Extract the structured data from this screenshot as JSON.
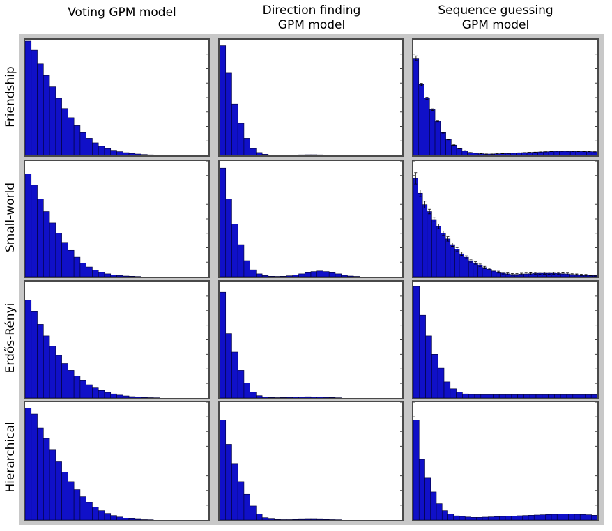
{
  "columns": [
    {
      "title": "Voting GPM model"
    },
    {
      "title": "Direction finding\nGPM model"
    },
    {
      "title": "Sequence guessing\nGPM model"
    }
  ],
  "rows": [
    {
      "label": "Friendship"
    },
    {
      "label": "Small-world"
    },
    {
      "label": "Erdős-Rényi"
    },
    {
      "label": "Hierarchical"
    }
  ],
  "colors": {
    "bar_fill": "#1010c8",
    "bar_stroke": "#000033",
    "panel_border": "#4a4a4a",
    "grid_bg": "#c8c8c8"
  },
  "chart_data": [
    {
      "type": "bar",
      "row": "Friendship",
      "column": "Voting GPM model",
      "ylim": [
        0,
        1
      ],
      "values": [
        1.0,
        0.92,
        0.8,
        0.7,
        0.6,
        0.5,
        0.41,
        0.33,
        0.26,
        0.2,
        0.15,
        0.11,
        0.08,
        0.06,
        0.045,
        0.033,
        0.024,
        0.017,
        0.012,
        0.008,
        0.005,
        0.003,
        0.002,
        0.001,
        0.001,
        0.0,
        0.0,
        0.0,
        0.0,
        0.0
      ]
    },
    {
      "type": "bar",
      "row": "Friendship",
      "column": "Direction finding GPM model",
      "ylim": [
        0,
        1
      ],
      "values": [
        0.96,
        0.72,
        0.45,
        0.28,
        0.15,
        0.06,
        0.025,
        0.01,
        0.004,
        0.002,
        0.001,
        0.001,
        0.003,
        0.005,
        0.006,
        0.006,
        0.005,
        0.003,
        0.002,
        0.001,
        0.0,
        0.0,
        0.0,
        0.0,
        0.0,
        0.0,
        0.0,
        0.0,
        0.0,
        0.0
      ]
    },
    {
      "type": "bar",
      "row": "Friendship",
      "column": "Sequence guessing GPM model",
      "ylim": [
        0,
        1
      ],
      "error_bars": true,
      "values": [
        0.85,
        0.62,
        0.5,
        0.4,
        0.3,
        0.2,
        0.14,
        0.09,
        0.06,
        0.04,
        0.025,
        0.02,
        0.015,
        0.012,
        0.012,
        0.014,
        0.016,
        0.018,
        0.02,
        0.022,
        0.024,
        0.026,
        0.028,
        0.03,
        0.032,
        0.034,
        0.036,
        0.036,
        0.036,
        0.035,
        0.034,
        0.034,
        0.033,
        0.032
      ],
      "errors": [
        0.02,
        0.01,
        0.01,
        0.008,
        0.006,
        0.005,
        0.004,
        0.003,
        0.002,
        0.002,
        0.001,
        0.001,
        0.001,
        0.001,
        0.001,
        0.001,
        0.001,
        0.001,
        0.001,
        0.001,
        0.001,
        0.001,
        0.001,
        0.001,
        0.001,
        0.001,
        0.001,
        0.001,
        0.001,
        0.001,
        0.001,
        0.001,
        0.001,
        0.001
      ]
    },
    {
      "type": "bar",
      "row": "Small-world",
      "column": "Voting GPM model",
      "ylim": [
        0,
        1
      ],
      "values": [
        0.9,
        0.8,
        0.68,
        0.57,
        0.47,
        0.38,
        0.3,
        0.23,
        0.17,
        0.12,
        0.085,
        0.058,
        0.038,
        0.025,
        0.016,
        0.01,
        0.006,
        0.004,
        0.002,
        0.001,
        0.0,
        0.0,
        0.0,
        0.0,
        0.0,
        0.0,
        0.0,
        0.0,
        0.0,
        0.0
      ]
    },
    {
      "type": "bar",
      "row": "Small-world",
      "column": "Direction finding GPM model",
      "ylim": [
        0,
        1
      ],
      "values": [
        0.95,
        0.68,
        0.46,
        0.28,
        0.14,
        0.06,
        0.025,
        0.01,
        0.004,
        0.003,
        0.004,
        0.008,
        0.015,
        0.025,
        0.035,
        0.045,
        0.05,
        0.045,
        0.035,
        0.025,
        0.012,
        0.006,
        0.003,
        0.001,
        0.0,
        0.0,
        0.0,
        0.0,
        0.0,
        0.0
      ]
    },
    {
      "type": "bar",
      "row": "Small-world",
      "column": "Sequence guessing GPM model",
      "ylim": [
        0,
        1
      ],
      "error_bars": true,
      "values": [
        0.86,
        0.73,
        0.63,
        0.57,
        0.5,
        0.44,
        0.38,
        0.33,
        0.28,
        0.24,
        0.2,
        0.17,
        0.14,
        0.12,
        0.1,
        0.08,
        0.065,
        0.05,
        0.04,
        0.032,
        0.025,
        0.02,
        0.02,
        0.022,
        0.024,
        0.026,
        0.028,
        0.03,
        0.03,
        0.03,
        0.03,
        0.028,
        0.026,
        0.024,
        0.02,
        0.018,
        0.016,
        0.014,
        0.012,
        0.01
      ],
      "errors": [
        0.05,
        0.03,
        0.03,
        0.02,
        0.02,
        0.02,
        0.02,
        0.02,
        0.015,
        0.015,
        0.015,
        0.012,
        0.012,
        0.01,
        0.01,
        0.01,
        0.008,
        0.008,
        0.008,
        0.008,
        0.008,
        0.008,
        0.008,
        0.008,
        0.008,
        0.008,
        0.008,
        0.008,
        0.008,
        0.008,
        0.008,
        0.008,
        0.008,
        0.008,
        0.006,
        0.006,
        0.006,
        0.006,
        0.004,
        0.004
      ]
    },
    {
      "type": "bar",
      "row": "Erdős-Rényi",
      "column": "Voting GPM model",
      "ylim": [
        0,
        1
      ],
      "values": [
        0.85,
        0.75,
        0.64,
        0.54,
        0.45,
        0.37,
        0.3,
        0.24,
        0.19,
        0.15,
        0.115,
        0.087,
        0.065,
        0.048,
        0.035,
        0.025,
        0.018,
        0.012,
        0.008,
        0.005,
        0.003,
        0.002,
        0.001,
        0.0,
        0.0,
        0.0,
        0.0,
        0.0,
        0.0,
        0.0
      ]
    },
    {
      "type": "bar",
      "row": "Erdős-Rényi",
      "column": "Direction finding GPM model",
      "ylim": [
        0,
        1
      ],
      "values": [
        0.92,
        0.56,
        0.4,
        0.24,
        0.13,
        0.05,
        0.02,
        0.008,
        0.004,
        0.003,
        0.004,
        0.006,
        0.008,
        0.01,
        0.011,
        0.01,
        0.008,
        0.006,
        0.004,
        0.002,
        0.001,
        0.0,
        0.0,
        0.0,
        0.0,
        0.0,
        0.0,
        0.0,
        0.0,
        0.0
      ]
    },
    {
      "type": "bar",
      "row": "Erdős-Rényi",
      "column": "Sequence guessing GPM model",
      "ylim": [
        0,
        1
      ],
      "values": [
        0.97,
        0.72,
        0.54,
        0.38,
        0.26,
        0.14,
        0.08,
        0.05,
        0.035,
        0.03,
        0.028,
        0.028,
        0.028,
        0.028,
        0.028,
        0.028,
        0.028,
        0.028,
        0.028,
        0.028,
        0.028,
        0.028,
        0.028,
        0.028,
        0.028,
        0.028,
        0.028,
        0.028,
        0.028,
        0.028
      ]
    },
    {
      "type": "bar",
      "row": "Hierarchical",
      "column": "Voting GPM model",
      "ylim": [
        0,
        1
      ],
      "values": [
        0.96,
        0.91,
        0.79,
        0.7,
        0.6,
        0.5,
        0.41,
        0.33,
        0.26,
        0.2,
        0.15,
        0.11,
        0.08,
        0.056,
        0.038,
        0.025,
        0.016,
        0.01,
        0.006,
        0.003,
        0.002,
        0.001,
        0.0,
        0.0,
        0.0,
        0.0,
        0.0,
        0.0,
        0.0,
        0.0
      ]
    },
    {
      "type": "bar",
      "row": "Hierarchical",
      "column": "Direction finding GPM model",
      "ylim": [
        0,
        1
      ],
      "values": [
        0.86,
        0.65,
        0.48,
        0.33,
        0.22,
        0.12,
        0.05,
        0.02,
        0.008,
        0.004,
        0.003,
        0.003,
        0.004,
        0.005,
        0.006,
        0.006,
        0.005,
        0.004,
        0.003,
        0.002,
        0.001,
        0.0,
        0.0,
        0.0,
        0.0,
        0.0,
        0.0,
        0.0,
        0.0,
        0.0
      ]
    },
    {
      "type": "bar",
      "row": "Hierarchical",
      "column": "Sequence guessing GPM model",
      "ylim": [
        0,
        1
      ],
      "values": [
        0.86,
        0.52,
        0.36,
        0.24,
        0.14,
        0.08,
        0.05,
        0.035,
        0.03,
        0.025,
        0.022,
        0.022,
        0.024,
        0.026,
        0.028,
        0.03,
        0.032,
        0.034,
        0.036,
        0.038,
        0.04,
        0.042,
        0.044,
        0.046,
        0.048,
        0.05,
        0.05,
        0.05,
        0.048,
        0.046,
        0.044,
        0.04
      ]
    }
  ]
}
